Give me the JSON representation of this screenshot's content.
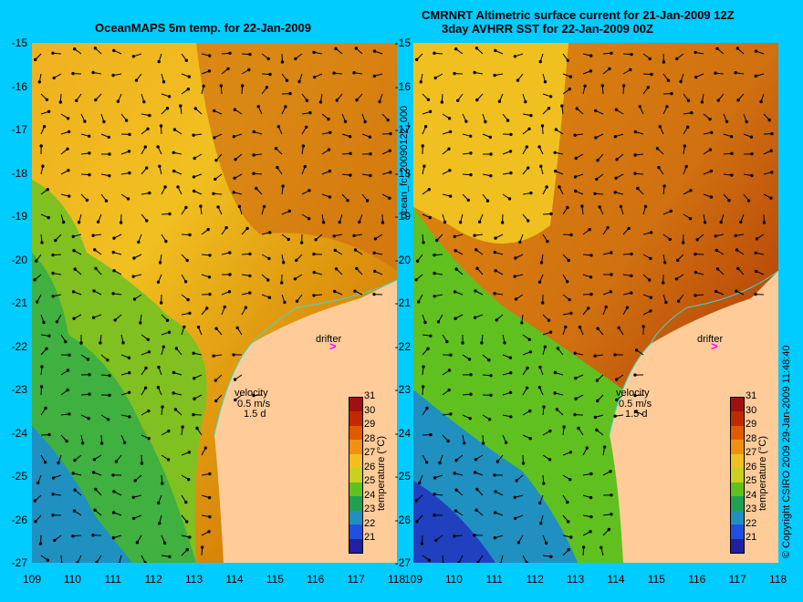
{
  "left": {
    "title": "OceanMAPS 5m temp. for 22-Jan-2009"
  },
  "right": {
    "title_line1": "CMRNRT Altimetric surface current for 21-Jan-2009 12Z",
    "title_line2": "3day AVHRR SST for 22-Jan-2009 00Z"
  },
  "axes": {
    "y_ticks": [
      "-15",
      "-16",
      "-17",
      "-18",
      "-19",
      "-20",
      "-21",
      "-22",
      "-23",
      "-24",
      "-25",
      "-26",
      "-27"
    ],
    "x_ticks": [
      "109",
      "110",
      "111",
      "112",
      "113",
      "114",
      "115",
      "116",
      "117",
      "118"
    ],
    "lat_range": [
      -27,
      -15
    ],
    "lon_range": [
      109,
      118
    ]
  },
  "colorbar": {
    "title": "temperature (°C)",
    "labels": [
      "31",
      "30",
      "29",
      "28",
      "27",
      "26",
      "25",
      "24",
      "23",
      "22",
      "21"
    ],
    "colors": [
      "#a01010",
      "#c02a00",
      "#e05a00",
      "#f09010",
      "#f0c020",
      "#c8d020",
      "#60c020",
      "#20a050",
      "#2090c0",
      "#2050e0",
      "#2020a0"
    ]
  },
  "annotations": {
    "drifter": "drifter",
    "velocity": "velocity",
    "speed": "0.5 m/s",
    "days": "1.5 d"
  },
  "side": {
    "file_label": "ocean_fc_20090122_000",
    "copyright": "© Copyright CSIRO 2009   29-Jan-2009 11:48:40"
  },
  "colors": {
    "background": "#00ccff",
    "land": "#ffcc99",
    "coast_cyan": "#33dddd",
    "drifter_magenta": "#ff00ff"
  }
}
